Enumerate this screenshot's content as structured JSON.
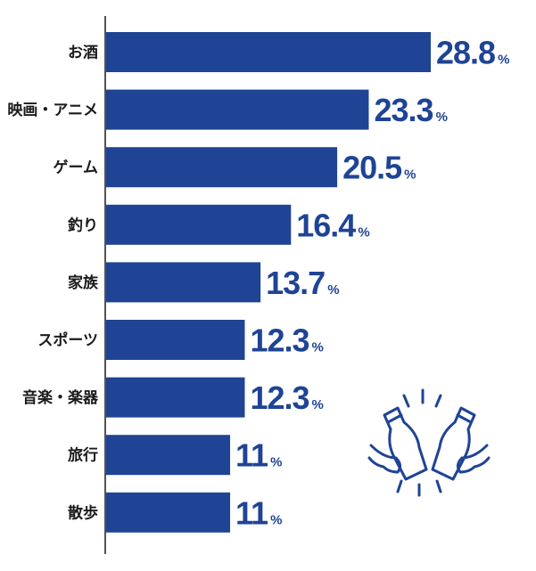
{
  "colors": {
    "bar": "#1f4495",
    "text": "#1a1a1a",
    "axis": "#1a1a1a"
  },
  "icon": "toasting-beer-bottles-icon",
  "chart_data": {
    "type": "bar",
    "orientation": "horizontal",
    "categories": [
      "お酒",
      "映画・アニメ",
      "ゲーム",
      "釣り",
      "家族",
      "スポーツ",
      "音楽・楽器",
      "旅行",
      "散歩"
    ],
    "values": [
      28.8,
      23.3,
      20.5,
      16.4,
      13.7,
      12.3,
      12.3,
      11,
      11
    ],
    "value_labels": [
      "28.8",
      "23.3",
      "20.5",
      "16.4",
      "13.7",
      "12.3",
      "12.3",
      "11",
      "11"
    ],
    "unit": "%",
    "title": "",
    "xlabel": "",
    "ylabel": "",
    "xlim": [
      0,
      28.8
    ],
    "grid": false,
    "legend": "none"
  }
}
